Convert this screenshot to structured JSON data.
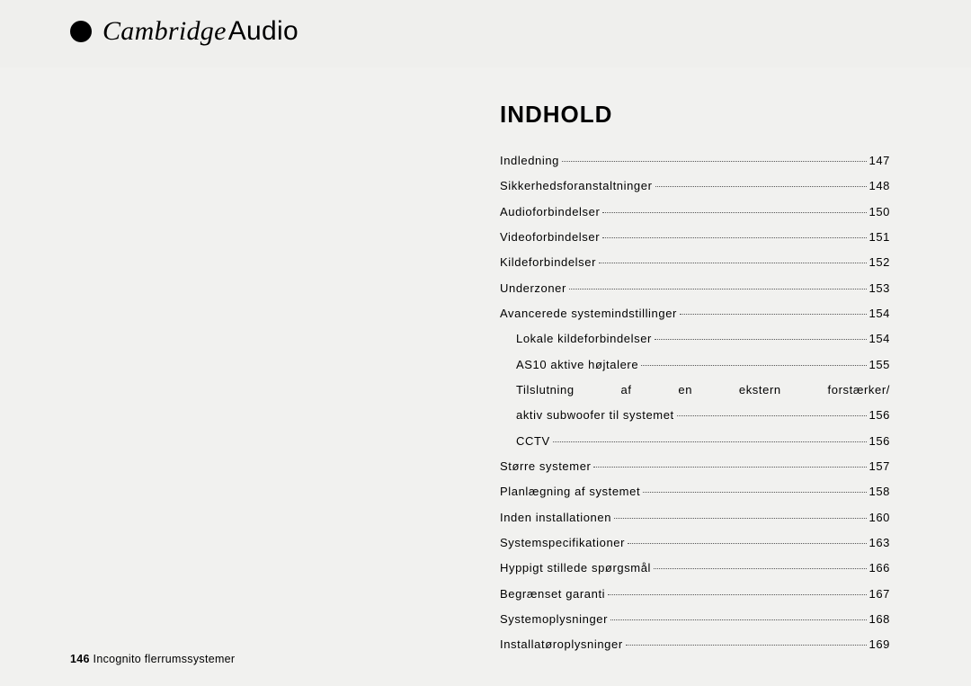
{
  "brand": {
    "name_part1": "Cambridge",
    "name_part2": "Audio"
  },
  "title": "INDHOLD",
  "footer": {
    "page_number": "146",
    "product": "Incognito flerrumssystemer"
  },
  "toc": [
    {
      "label": "Indledning",
      "page": "147",
      "indent": false
    },
    {
      "label": "Sikkerhedsforanstaltninger",
      "page": "148",
      "indent": false
    },
    {
      "label": "Audioforbindelser",
      "page": "150",
      "indent": false
    },
    {
      "label": "Videoforbindelser",
      "page": "151",
      "indent": false
    },
    {
      "label": "Kildeforbindelser",
      "page": "152",
      "indent": false
    },
    {
      "label": "Underzoner",
      "page": "153",
      "indent": false
    },
    {
      "label": "Avancerede systemindstillinger",
      "page": "154",
      "indent": false
    },
    {
      "label": "Lokale kildeforbindelser",
      "page": "154",
      "indent": true
    },
    {
      "label": "AS10 aktive højtalere",
      "page": "155",
      "indent": true
    },
    {
      "label": "Tilslutning af en ekstern forstærker/",
      "page": "",
      "indent": true,
      "nodots": true
    },
    {
      "label": "aktiv subwoofer til systemet",
      "page": "156",
      "indent": true
    },
    {
      "label": "CCTV",
      "page": "156",
      "indent": true
    },
    {
      "label": "Større systemer",
      "page": "157",
      "indent": false
    },
    {
      "label": "Planlægning af systemet",
      "page": "158",
      "indent": false
    },
    {
      "label": "Inden installationen",
      "page": "160",
      "indent": false
    },
    {
      "label": "Systemspecifikationer",
      "page": "163",
      "indent": false
    },
    {
      "label": "Hyppigt stillede spørgsmål",
      "page": "166",
      "indent": false
    },
    {
      "label": "Begrænset garanti",
      "page": "167",
      "indent": false
    },
    {
      "label": "Systemoplysninger",
      "page": "168",
      "indent": false
    },
    {
      "label": "Installatøroplysninger",
      "page": "169",
      "indent": false
    }
  ],
  "colors": {
    "bg": "#f1f1ef",
    "text": "#000000",
    "dots": "#555555"
  }
}
